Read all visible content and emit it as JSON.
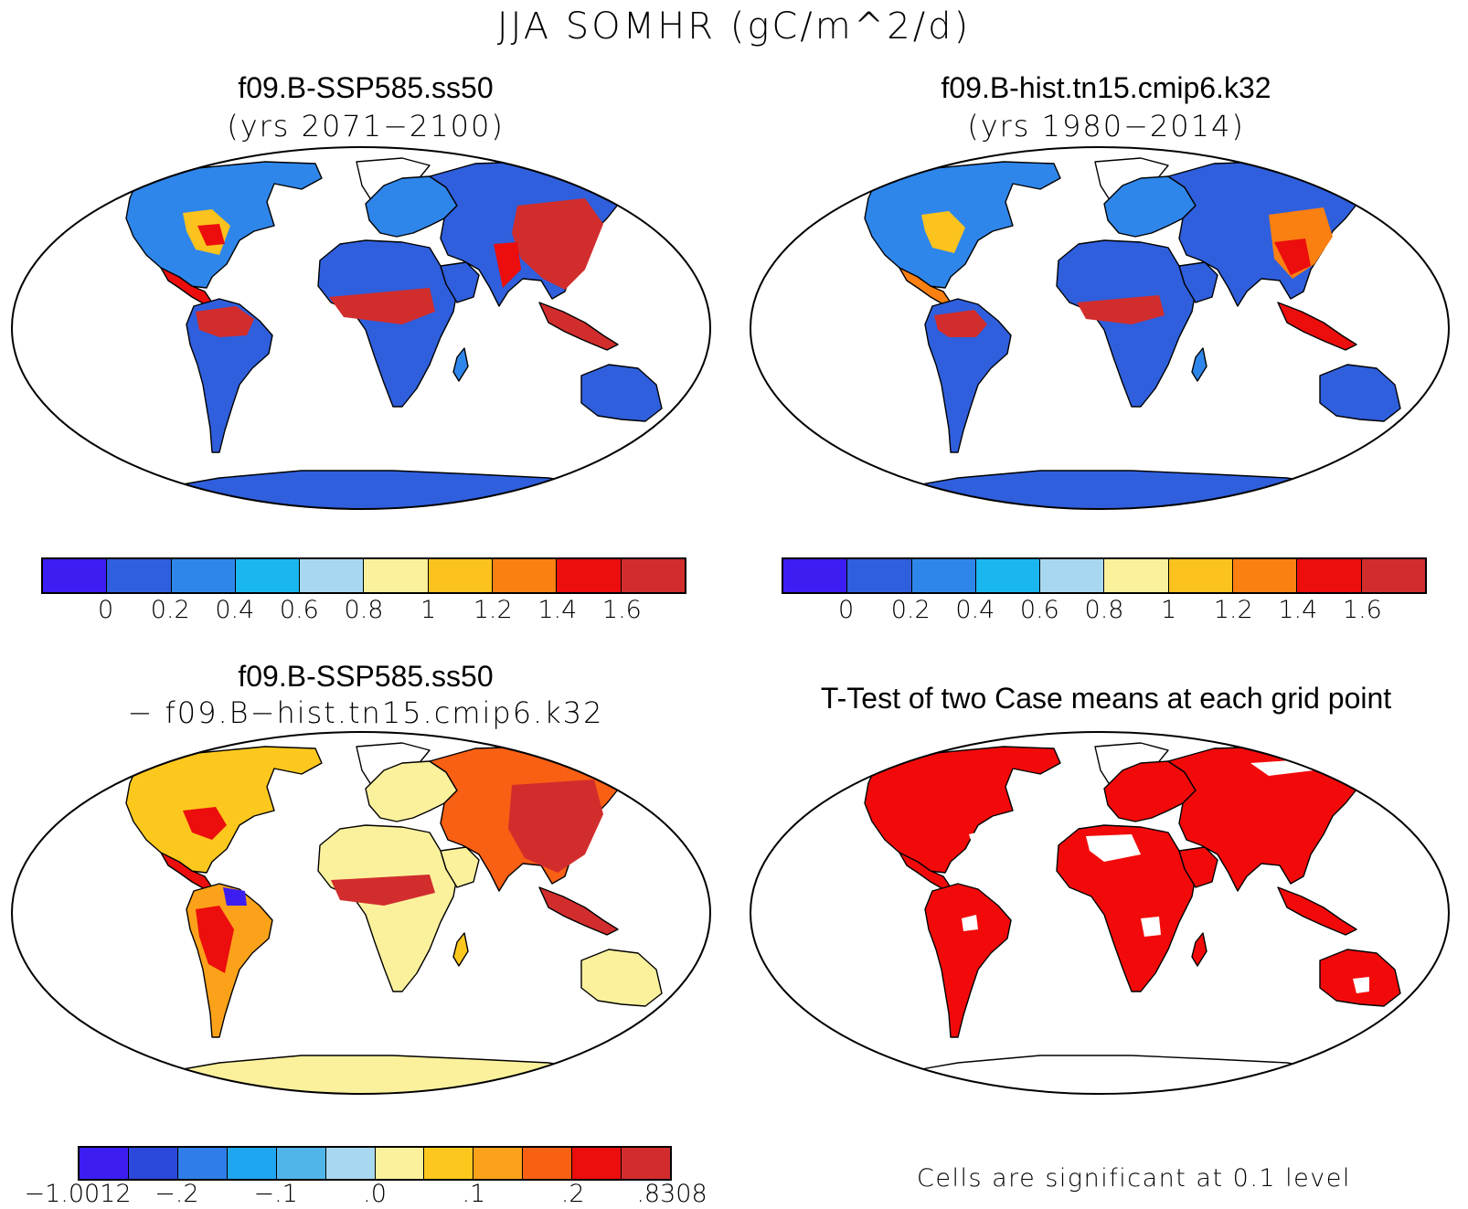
{
  "main_title": "JJA SOMHR (gC/m^2/d)",
  "panels": [
    {
      "title": "f09.B-SSP585.ss50",
      "subtitle": "(yrs 2071−2100)"
    },
    {
      "title": "f09.B-hist.tn15.cmip6.k32",
      "subtitle": "(yrs 1980−2014)"
    },
    {
      "title": "f09.B-SSP585.ss50",
      "subtitle": "− f09.B−hist.tn15.cmip6.k32"
    },
    {
      "title": "T-Test of two Case means at each grid point",
      "subtitle": ""
    }
  ],
  "colorbar_abs": {
    "colors": [
      "#3d1ef2",
      "#2f5fdc",
      "#2f86ea",
      "#1ab6f0",
      "#a8d8f0",
      "#fbf19c",
      "#fcc21e",
      "#fa8012",
      "#ec0d0d",
      "#d22d2d"
    ],
    "labels": [
      "0",
      "0.2",
      "0.4",
      "0.6",
      "0.8",
      "1",
      "1.2",
      "1.4",
      "1.6"
    ]
  },
  "colorbar_diff": {
    "colors": [
      "#3d1ef2",
      "#2b48dc",
      "#2f7de8",
      "#1ea6f0",
      "#50b6ea",
      "#a8d8f0",
      "#fbf19c",
      "#fcc81e",
      "#fca21a",
      "#f86014",
      "#ec0d0d",
      "#d22d2d"
    ],
    "labels": [
      "−1.0012",
      "−.2",
      "−.1",
      ".0",
      ".1",
      ".2",
      ".8308"
    ]
  },
  "significance_note": "Cells are significant at 0.1 level",
  "map_colors": {
    "ocean": "#ffffff",
    "sig": "#f20a0a",
    "antarctica_abs": "#2f5fdc",
    "antarctica_diff": "#fbf19c"
  }
}
